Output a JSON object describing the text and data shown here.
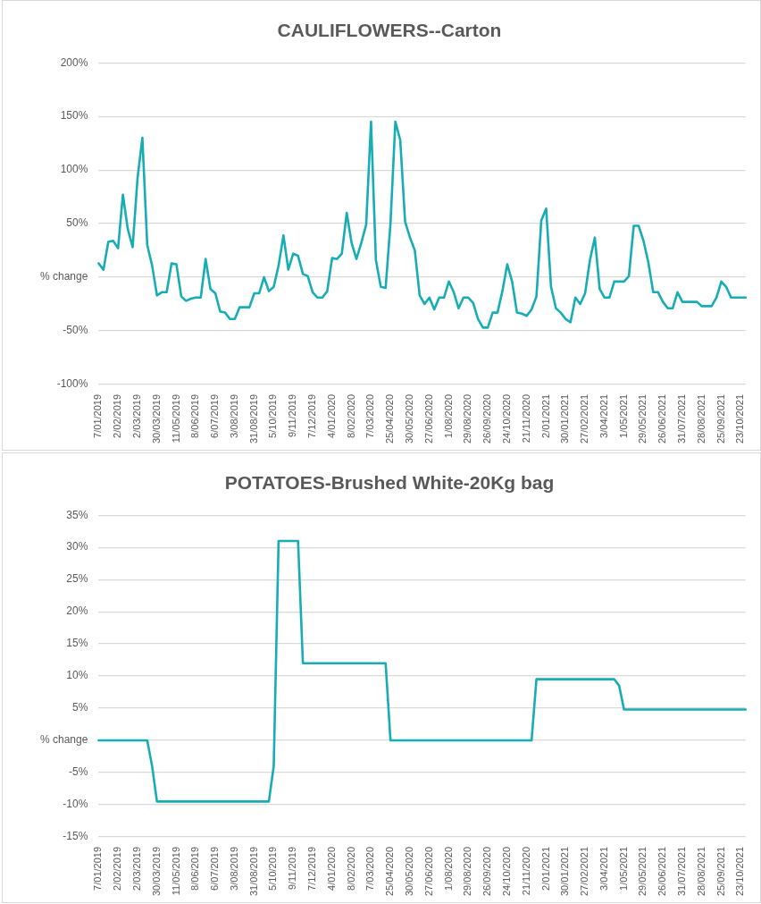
{
  "chart_data": [
    {
      "type": "line",
      "title": "CAULIFLOWERS--Carton",
      "marker": "none",
      "grid": "y",
      "categories": [
        "7/01/2019",
        null,
        null,
        null,
        "2/02/2019",
        null,
        null,
        null,
        "2/03/2019",
        null,
        null,
        null,
        "30/03/2019",
        null,
        null,
        null,
        "11/05/2019",
        null,
        null,
        null,
        "8/06/2019",
        null,
        null,
        null,
        "6/07/2019",
        null,
        null,
        null,
        "3/08/2019",
        null,
        null,
        null,
        "31/08/2019",
        null,
        null,
        null,
        "5/10/2019",
        null,
        null,
        null,
        "9/11/2019",
        null,
        null,
        null,
        "7/12/2019",
        null,
        null,
        null,
        "4/01/2020",
        null,
        null,
        null,
        "8/02/2020",
        null,
        null,
        null,
        "7/03/2020",
        null,
        null,
        null,
        "25/04/2020",
        null,
        null,
        null,
        "30/05/2020",
        null,
        null,
        null,
        "27/06/2020",
        null,
        null,
        null,
        "1/08/2020",
        null,
        null,
        null,
        "29/08/2020",
        null,
        null,
        null,
        "26/09/2020",
        null,
        null,
        null,
        "24/10/2020",
        null,
        null,
        null,
        "21/11/2020",
        null,
        null,
        null,
        "2/01/2021",
        null,
        null,
        null,
        "30/01/2021",
        null,
        null,
        null,
        "27/02/2021",
        null,
        null,
        null,
        "3/04/2021",
        null,
        null,
        null,
        "1/05/2021",
        null,
        null,
        null,
        "29/05/2021",
        null,
        null,
        null,
        "26/06/2021",
        null,
        null,
        null,
        "31/07/2021",
        null,
        null,
        null,
        "28/08/2021",
        null,
        null,
        null,
        "25/09/2021",
        null,
        null,
        null,
        "23/10/2021",
        null
      ],
      "series": [
        {
          "color": "#17adb5",
          "values": [
            13,
            7,
            33,
            34,
            27,
            77,
            45,
            28,
            92,
            130,
            30,
            11,
            -17,
            -14,
            -14,
            13,
            12,
            -18,
            -22,
            -20,
            -19,
            -19,
            17,
            -11,
            -15,
            -32,
            -33,
            -39,
            -39,
            -28,
            -28,
            -28,
            -15,
            -15,
            0,
            -13,
            -9,
            11,
            39,
            7,
            22,
            20,
            3,
            1,
            -14,
            -19,
            -19,
            -13,
            18,
            17,
            22,
            60,
            32,
            17,
            32,
            49,
            145,
            16,
            -9,
            -10,
            50,
            145,
            128,
            52,
            37,
            25,
            -17,
            -25,
            -19,
            -30,
            -19,
            -19,
            -4,
            -14,
            -29,
            -19,
            -19,
            -24,
            -39,
            -47,
            -47,
            -33,
            -33,
            -13,
            12,
            -4,
            -33,
            -34,
            -36,
            -30,
            -18,
            53,
            64,
            -9,
            -29,
            -33,
            -39,
            -42,
            -19,
            -25,
            -15,
            16,
            37,
            -11,
            -19,
            -19,
            -4,
            -4,
            -4,
            1,
            48,
            48,
            34,
            14,
            -14,
            -14,
            -23,
            -29,
            -29,
            -14,
            -23,
            -23,
            -23,
            -23,
            -27,
            -27,
            -27,
            -19,
            -4,
            -9,
            -19,
            -19,
            -19,
            -19
          ]
        }
      ],
      "ylim": [
        -100,
        200
      ],
      "yticks": [
        {
          "value": -100,
          "label": "-100%"
        },
        {
          "value": -50,
          "label": "-50%"
        },
        {
          "value": 0,
          "label": "% change"
        },
        {
          "value": 50,
          "label": "50%"
        },
        {
          "value": 100,
          "label": "100%"
        },
        {
          "value": 150,
          "label": "150%"
        },
        {
          "value": 200,
          "label": "200%"
        }
      ]
    },
    {
      "type": "line",
      "title": "POTATOES-Brushed White-20Kg bag",
      "marker": "none",
      "grid": "y",
      "categories": [
        "7/01/2019",
        null,
        null,
        null,
        "2/02/2019",
        null,
        null,
        null,
        "2/03/2019",
        null,
        null,
        null,
        "30/03/2019",
        null,
        null,
        null,
        "11/05/2019",
        null,
        null,
        null,
        "8/06/2019",
        null,
        null,
        null,
        "6/07/2019",
        null,
        null,
        null,
        "3/08/2019",
        null,
        null,
        null,
        "31/08/2019",
        null,
        null,
        null,
        "5/10/2019",
        null,
        null,
        null,
        "9/11/2019",
        null,
        null,
        null,
        "7/12/2019",
        null,
        null,
        null,
        "4/01/2020",
        null,
        null,
        null,
        "8/02/2020",
        null,
        null,
        null,
        "7/03/2020",
        null,
        null,
        null,
        "25/04/2020",
        null,
        null,
        null,
        "30/05/2020",
        null,
        null,
        null,
        "27/06/2020",
        null,
        null,
        null,
        "1/08/2020",
        null,
        null,
        null,
        "29/08/2020",
        null,
        null,
        null,
        "26/09/2020",
        null,
        null,
        null,
        "24/10/2020",
        null,
        null,
        null,
        "21/11/2020",
        null,
        null,
        null,
        "2/01/2021",
        null,
        null,
        null,
        "30/01/2021",
        null,
        null,
        null,
        "27/02/2021",
        null,
        null,
        null,
        "3/04/2021",
        null,
        null,
        null,
        "1/05/2021",
        null,
        null,
        null,
        "29/05/2021",
        null,
        null,
        null,
        "26/06/2021",
        null,
        null,
        null,
        "31/07/2021",
        null,
        null,
        null,
        "28/08/2021",
        null,
        null,
        null,
        "25/09/2021",
        null,
        null,
        null,
        "23/10/2021",
        null
      ],
      "series": [
        {
          "color": "#17adb5",
          "values": [
            0,
            0,
            0,
            0,
            0,
            0,
            0,
            0,
            0,
            0,
            0,
            -4,
            -9.5,
            -9.5,
            -9.5,
            -9.5,
            -9.5,
            -9.5,
            -9.5,
            -9.5,
            -9.5,
            -9.5,
            -9.5,
            -9.5,
            -9.5,
            -9.5,
            -9.5,
            -9.5,
            -9.5,
            -9.5,
            -9.5,
            -9.5,
            -9.5,
            -9.5,
            -9.5,
            -9.5,
            -4,
            31,
            31,
            31,
            31,
            31,
            12,
            12,
            12,
            12,
            12,
            12,
            12,
            12,
            12,
            12,
            12,
            12,
            12,
            12,
            12,
            12,
            12,
            12,
            0,
            0,
            0,
            0,
            0,
            0,
            0,
            0,
            0,
            0,
            0,
            0,
            0,
            0,
            0,
            0,
            0,
            0,
            0,
            0,
            0,
            0,
            0,
            0,
            0,
            0,
            0,
            0,
            0,
            0,
            9.5,
            9.5,
            9.5,
            9.5,
            9.5,
            9.5,
            9.5,
            9.5,
            9.5,
            9.5,
            9.5,
            9.5,
            9.5,
            9.5,
            9.5,
            9.5,
            9.5,
            8.5,
            4.8,
            4.8,
            4.8,
            4.8,
            4.8,
            4.8,
            4.8,
            4.8,
            4.8,
            4.8,
            4.8,
            4.8,
            4.8,
            4.8,
            4.8,
            4.8,
            4.8,
            4.8,
            4.8,
            4.8,
            4.8,
            4.8,
            4.8,
            4.8,
            4.8,
            4.8
          ]
        }
      ],
      "ylim": [
        -15,
        35
      ],
      "yticks": [
        {
          "value": -15,
          "label": "-15%"
        },
        {
          "value": -10,
          "label": "-10%"
        },
        {
          "value": -5,
          "label": "-5%"
        },
        {
          "value": 0,
          "label": "% change"
        },
        {
          "value": 5,
          "label": "5%"
        },
        {
          "value": 10,
          "label": "10%"
        },
        {
          "value": 15,
          "label": "15%"
        },
        {
          "value": 20,
          "label": "20%"
        },
        {
          "value": 25,
          "label": "25%"
        },
        {
          "value": 30,
          "label": "30%"
        },
        {
          "value": 35,
          "label": "35%"
        }
      ]
    }
  ]
}
